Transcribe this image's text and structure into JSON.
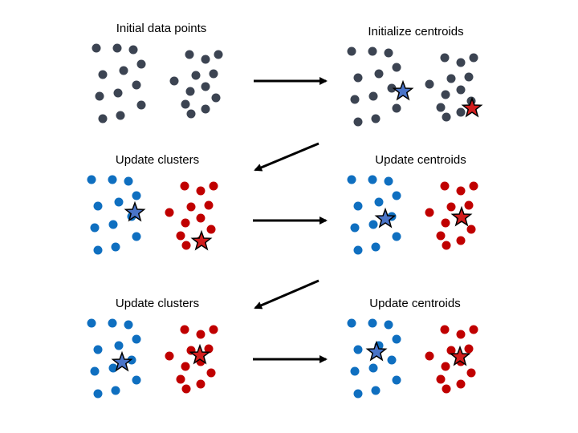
{
  "panels": [
    {
      "title": "Initial data points"
    },
    {
      "title": "Initialize centroids"
    },
    {
      "title": "Update clusters"
    },
    {
      "title": "Update centroids"
    },
    {
      "title": "Update clusters"
    },
    {
      "title": "Update centroids"
    }
  ],
  "colors": {
    "unassigned_point": "#3c4452",
    "cluster_a_point": "#0f6fc0",
    "cluster_b_point": "#c00000",
    "cluster_a_centroid": "#4a74c8",
    "cluster_b_centroid": "#d21e1e",
    "arrow": "#000000"
  },
  "icons": {
    "data_point": "circle",
    "centroid": "star",
    "step_arrow": "arrow"
  }
}
